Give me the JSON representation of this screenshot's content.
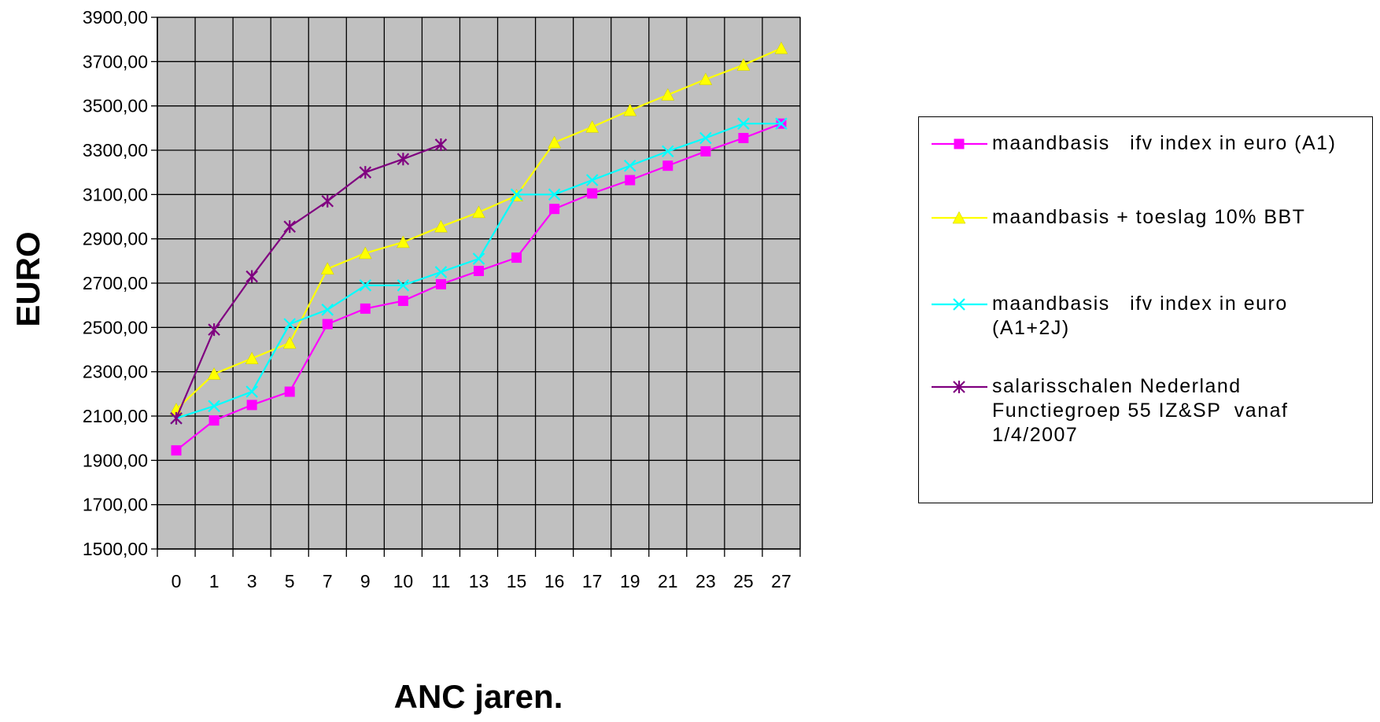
{
  "chart_data": {
    "type": "line",
    "title": "",
    "xlabel": "ANC jaren.",
    "ylabel": "EURO",
    "categories": [
      "0",
      "1",
      "3",
      "5",
      "7",
      "9",
      "10",
      "11",
      "13",
      "15",
      "16",
      "17",
      "19",
      "21",
      "23",
      "25",
      "27"
    ],
    "ylim": [
      1500,
      3900
    ],
    "yticks": [
      "1500,00",
      "1700,00",
      "1900,00",
      "2100,00",
      "2300,00",
      "2500,00",
      "2700,00",
      "2900,00",
      "3100,00",
      "3300,00",
      "3500,00",
      "3700,00",
      "3900,00"
    ],
    "grid": true,
    "plot_background": "#c0c0c0",
    "legend_position": "right",
    "series": [
      {
        "name": "maandbasis   ifv index in euro (A1)",
        "color": "#ff00ff",
        "marker": "square",
        "values": [
          1945,
          2080,
          2150,
          2210,
          2515,
          2585,
          2620,
          2695,
          2755,
          2815,
          3035,
          3105,
          3165,
          3230,
          3295,
          3355,
          3420
        ]
      },
      {
        "name": "maandbasis + toeslag 10% BBT",
        "color": "#ffff00",
        "marker": "triangle",
        "values": [
          2130,
          2290,
          2360,
          2430,
          2765,
          2835,
          2885,
          2955,
          3020,
          3095,
          3335,
          3405,
          3480,
          3550,
          3620,
          3685,
          3760
        ]
      },
      {
        "name": "maandbasis   ifv index in euro\n(A1+2J)",
        "color": "#00ffff",
        "marker": "x",
        "values": [
          2090,
          2145,
          2210,
          2515,
          2580,
          2690,
          2690,
          2750,
          2810,
          3100,
          3100,
          3165,
          3230,
          3295,
          3355,
          3420,
          3420
        ]
      },
      {
        "name": "salarisschalen Nederland\nFunctiegroep 55 IZ&SP  vanaf\n1/4/2007",
        "color": "#800080",
        "marker": "star",
        "values": [
          2090,
          2490,
          2730,
          2955,
          3070,
          3200,
          3260,
          3325,
          null,
          null,
          null,
          null,
          null,
          null,
          null,
          null,
          null
        ]
      }
    ]
  }
}
